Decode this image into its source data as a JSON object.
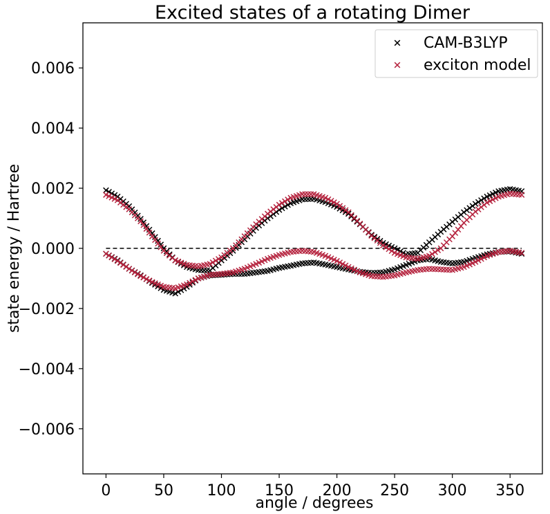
{
  "chart_data": {
    "type": "scatter",
    "title": "Excited states of a rotating Dimer",
    "xlabel": "angle / degrees",
    "ylabel": "state  energy / Hartree",
    "xlim": [
      -20,
      378
    ],
    "ylim": [
      -0.0075,
      0.0075
    ],
    "xticks": [
      0,
      50,
      100,
      150,
      200,
      250,
      300,
      350
    ],
    "yticks": [
      -0.006,
      -0.004,
      -0.002,
      0.0,
      0.002,
      0.004,
      0.006
    ],
    "xtick_labels": [
      "0",
      "50",
      "100",
      "150",
      "200",
      "250",
      "300",
      "350"
    ],
    "ytick_labels": [
      "−0.006",
      "−0.004",
      "−0.002",
      "0.000",
      "0.002",
      "0.004",
      "0.006"
    ],
    "grid": false,
    "legend_position": "top-right",
    "marker": "x",
    "reference_line": {
      "y": 0.0,
      "x_range": [
        0,
        360
      ],
      "style": "dashed",
      "color": "#000000"
    },
    "series": [
      {
        "name": "CAM-B3LYP",
        "color": "#000000",
        "x": [
          0,
          10,
          20,
          30,
          40,
          50,
          60,
          70,
          80,
          90,
          100,
          110,
          120,
          130,
          140,
          150,
          160,
          170,
          180,
          190,
          200,
          210,
          220,
          230,
          240,
          250,
          260,
          270,
          280,
          290,
          300,
          310,
          320,
          330,
          340,
          350,
          360
        ],
        "y_upper": [
          0.00193,
          0.00172,
          0.0014,
          0.00098,
          0.0005,
          0.0,
          -0.0004,
          -0.00062,
          -0.00072,
          -0.00074,
          -0.0004,
          -8e-05,
          0.0003,
          0.00068,
          0.001,
          0.00128,
          0.0015,
          0.00163,
          0.00165,
          0.00154,
          0.00138,
          0.00115,
          0.0008,
          0.00045,
          0.00018,
          0.0,
          -0.0002,
          -0.00015,
          0.0002,
          0.00055,
          0.00088,
          0.0012,
          0.00148,
          0.00172,
          0.0019,
          0.00197,
          0.0019
        ],
        "y_lower": [
          -0.00018,
          -0.0004,
          -0.00068,
          -0.0009,
          -0.00115,
          -0.00138,
          -0.0015,
          -0.00128,
          -0.001,
          -0.0009,
          -0.00088,
          -0.00085,
          -0.00085,
          -0.0008,
          -0.00075,
          -0.00065,
          -0.00058,
          -0.0005,
          -0.00047,
          -0.00054,
          -0.00062,
          -0.0007,
          -0.00078,
          -0.00082,
          -0.0008,
          -0.0007,
          -0.00055,
          -0.0004,
          -0.00035,
          -0.00045,
          -0.0005,
          -0.00045,
          -0.00032,
          -0.0002,
          -0.00012,
          -0.0001,
          -0.00018
        ]
      },
      {
        "name": "exciton model",
        "color": "#b5233e",
        "x": [
          0,
          10,
          20,
          30,
          40,
          50,
          60,
          70,
          80,
          90,
          100,
          110,
          120,
          130,
          140,
          150,
          160,
          170,
          180,
          190,
          200,
          210,
          220,
          230,
          240,
          250,
          260,
          270,
          280,
          290,
          300,
          310,
          320,
          330,
          340,
          350,
          360
        ],
        "y_upper": [
          0.00178,
          0.0016,
          0.0013,
          0.0009,
          0.0004,
          -8e-05,
          -0.0004,
          -0.00055,
          -0.0006,
          -0.00052,
          -0.0003,
          0.0,
          0.0004,
          0.0008,
          0.00115,
          0.00145,
          0.00168,
          0.0018,
          0.0018,
          0.00168,
          0.00148,
          0.0012,
          0.00082,
          0.00042,
          0.0001,
          -0.00015,
          -0.0003,
          -0.00035,
          -0.00025,
          0.0,
          0.0004,
          0.00085,
          0.00122,
          0.00152,
          0.00172,
          0.00182,
          0.00178
        ],
        "y_lower": [
          -0.00018,
          -0.00042,
          -0.00068,
          -0.00092,
          -0.00112,
          -0.00128,
          -0.00133,
          -0.0012,
          -0.001,
          -0.00088,
          -0.00085,
          -0.0008,
          -0.00068,
          -0.00052,
          -0.00035,
          -0.00022,
          -0.00012,
          -8e-05,
          -0.00012,
          -0.00025,
          -0.00042,
          -0.00062,
          -0.0008,
          -0.00092,
          -0.00095,
          -0.0009,
          -0.0008,
          -0.00072,
          -0.00068,
          -0.0007,
          -0.00072,
          -0.00062,
          -0.00045,
          -0.00025,
          -0.00012,
          -8e-05,
          -0.00015
        ]
      }
    ]
  }
}
